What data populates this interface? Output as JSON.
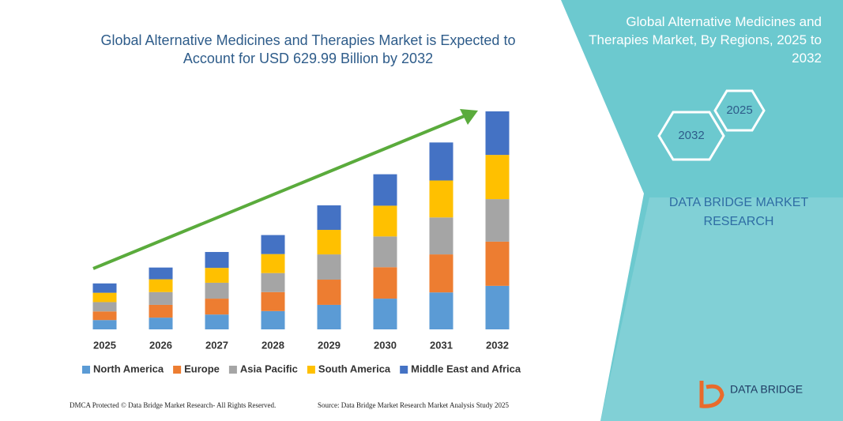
{
  "chart_data": {
    "type": "stacked-bar",
    "title": "Global Alternative Medicines and Therapies Market is Expected to Account for USD 629.99 Billion by 2032",
    "categories": [
      "2025",
      "2026",
      "2027",
      "2028",
      "2029",
      "2030",
      "2031",
      "2032"
    ],
    "series": [
      {
        "name": "North America",
        "color": "#5b9bd5",
        "values": [
          27,
          34,
          43,
          53,
          71,
          89,
          107,
          126
        ]
      },
      {
        "name": "Europe",
        "color": "#ed7d31",
        "values": [
          25,
          37,
          46,
          55,
          73,
          91,
          110,
          128
        ]
      },
      {
        "name": "Asia Pacific",
        "color": "#a5a5a5",
        "values": [
          27,
          37,
          46,
          55,
          73,
          89,
          107,
          123
        ]
      },
      {
        "name": "South America",
        "color": "#ffc000",
        "values": [
          27,
          37,
          43,
          55,
          71,
          89,
          107,
          128
        ]
      },
      {
        "name": "Middle East and Africa",
        "color": "#4472c4",
        "values": [
          27,
          34,
          46,
          55,
          71,
          91,
          110,
          126
        ]
      }
    ],
    "legend": "bottom"
  },
  "side_panel": {
    "title": "Global Alternative Medicines and Therapies Market, By Regions, 2025 to 2032",
    "hexagons": [
      "2025",
      "2032"
    ],
    "brand": "DATA BRIDGE MARKET RESEARCH"
  },
  "footer": {
    "left": "DMCA Protected © Data Bridge Market Research- All Rights Reserved.",
    "right": "Source: Data Bridge Market Research Market Analysis Study 2025"
  },
  "logo": "DATA BRIDGE"
}
